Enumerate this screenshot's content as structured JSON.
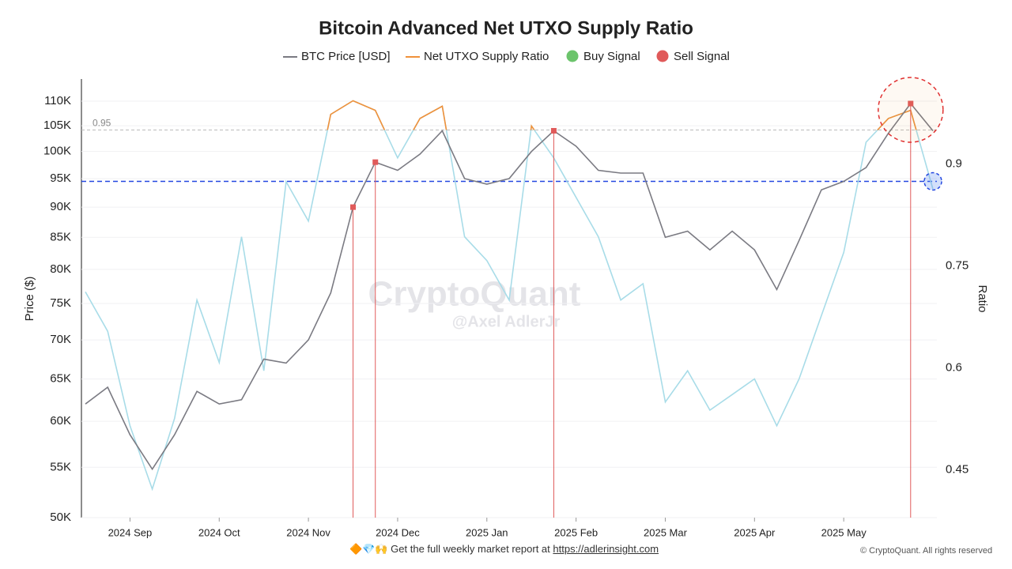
{
  "chart_data": {
    "type": "line",
    "title": "Bitcoin Advanced Net UTXO Supply Ratio",
    "y_label": "Price ($)",
    "y2_label": "Ratio",
    "categories": [
      null,
      null,
      "2024 Sep",
      null,
      null,
      null,
      "2024 Oct",
      null,
      null,
      null,
      "2024 Nov",
      null,
      null,
      null,
      "2024 Dec",
      null,
      null,
      null,
      "2025 Jan",
      null,
      null,
      null,
      "2025 Feb",
      null,
      null,
      null,
      "2025 Mar",
      null,
      null,
      null,
      "2025 Apr",
      null,
      null,
      null,
      "2025 May",
      null,
      null,
      null,
      null
    ],
    "ylog": true,
    "ylim": [
      50000,
      114700
    ],
    "yticks": [
      {
        "value": 50000,
        "label": "50K"
      },
      {
        "value": 55000,
        "label": "55K"
      },
      {
        "value": 60000,
        "label": "60K"
      },
      {
        "value": 65000,
        "label": "65K"
      },
      {
        "value": 70000,
        "label": "70K"
      },
      {
        "value": 75000,
        "label": "75K"
      },
      {
        "value": 80000,
        "label": "80K"
      },
      {
        "value": 85000,
        "label": "85K"
      },
      {
        "value": 90000,
        "label": "90K"
      },
      {
        "value": 95000,
        "label": "95K"
      },
      {
        "value": 100000,
        "label": "100K"
      },
      {
        "value": 105000,
        "label": "105K"
      },
      {
        "value": 110000,
        "label": "110K"
      }
    ],
    "y2lim": [
      0.38,
      1.025
    ],
    "y2ticks": [
      0.45,
      0.6,
      0.75,
      0.9
    ],
    "grid": true,
    "threshold": 0.95,
    "below_threshold_color": "#a8dce8",
    "reference_line": {
      "value": 94500,
      "color": "#2447e0"
    },
    "series": [
      {
        "name": "BTC Price [USD]",
        "color": "#7a7a82",
        "values": [
          62000,
          64000,
          58500,
          54800,
          58500,
          63500,
          62000,
          62500,
          67500,
          67000,
          70000,
          76500,
          90000,
          98000,
          96500,
          99500,
          104000,
          95000,
          94000,
          95000,
          100000,
          104000,
          101000,
          96500,
          96000,
          96000,
          85000,
          86000,
          83000,
          86000,
          83000,
          77000,
          84500,
          93000,
          94500,
          97000,
          103500,
          109500,
          104000
        ]
      },
      {
        "name": "Net UTXO Supply Ratio",
        "color": "#f0913a",
        "axis": "y2",
        "values": [
          0.712,
          0.654,
          0.515,
          0.422,
          0.526,
          0.7,
          0.608,
          0.793,
          0.596,
          0.874,
          0.816,
          0.973,
          0.993,
          0.979,
          0.909,
          0.967,
          0.985,
          0.793,
          0.758,
          0.7,
          0.956,
          0.909,
          0.851,
          0.793,
          0.7,
          0.724,
          0.55,
          0.596,
          0.538,
          0.561,
          0.584,
          0.515,
          0.584,
          0.677,
          0.77,
          0.932,
          0.967,
          0.979,
          0.863
        ]
      },
      {
        "name": "Buy Signal",
        "color": "#6cc46c",
        "type": "scatter",
        "values": [
          null,
          null,
          null,
          null,
          null,
          null,
          null,
          null,
          null,
          null,
          null,
          null,
          null,
          null,
          null,
          null,
          null,
          null,
          null,
          null,
          null,
          null,
          null,
          null,
          null,
          null,
          null,
          null,
          null,
          null,
          null,
          null,
          null,
          null,
          null,
          null,
          null,
          null,
          null
        ]
      },
      {
        "name": "Sell Signal",
        "color": "#e05a5a",
        "type": "scatter",
        "values": [
          null,
          null,
          null,
          null,
          null,
          null,
          null,
          null,
          null,
          null,
          null,
          null,
          90000,
          98000,
          null,
          null,
          null,
          null,
          null,
          null,
          null,
          104000,
          null,
          null,
          null,
          null,
          null,
          null,
          null,
          null,
          null,
          null,
          null,
          null,
          null,
          null,
          null,
          109500,
          null
        ]
      }
    ],
    "watermark": "CryptoQuant",
    "watermark_sub": "@Axel AdlerJr",
    "footer_text": "🔶💎🙌 Get the full weekly market report at",
    "footer_link": "https://adlerinsight.com",
    "copyright": "© CryptoQuant. All rights reserved"
  }
}
